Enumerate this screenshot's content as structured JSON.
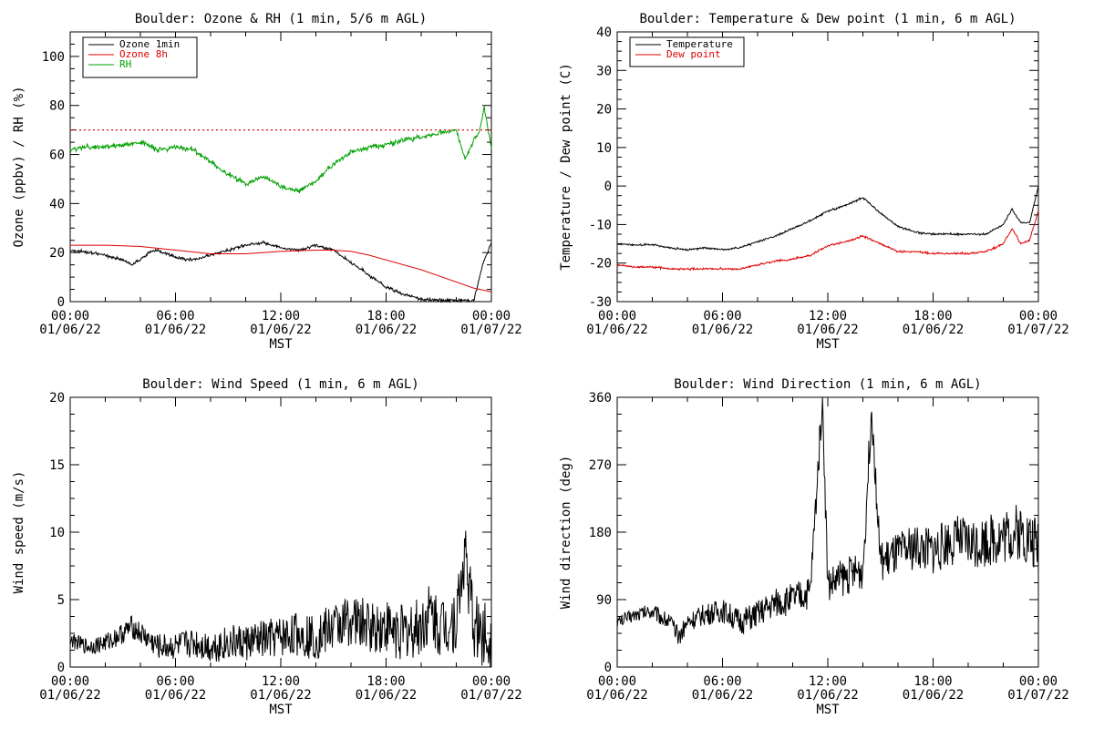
{
  "colors": {
    "black": "#000000",
    "red": "#e00000",
    "green": "#00a000"
  },
  "chart_data": [
    {
      "type": "line",
      "title": "Boulder: Ozone & RH (1 min, 5/6 m AGL)",
      "ylabel": "Ozone (ppbv) / RH (%)",
      "xlabel": "MST",
      "xtick_times": [
        "00:00",
        "06:00",
        "12:00",
        "18:00",
        "00:00"
      ],
      "xtick_dates": [
        "01/06/22",
        "01/06/22",
        "01/06/22",
        "01/06/22",
        "01/07/22"
      ],
      "xlim_hours": [
        0,
        24
      ],
      "ylim": [
        0,
        110
      ],
      "yticks": [
        0,
        20,
        40,
        60,
        80,
        100
      ],
      "reference_line": {
        "y": 70,
        "color": "#e00000",
        "style": "dotted"
      },
      "legend_position": "top-left",
      "series": [
        {
          "name": "Ozone 1min",
          "color": "#000000",
          "x": [
            0,
            1,
            2,
            3,
            3.5,
            4,
            4.5,
            5,
            6,
            7,
            8,
            9,
            10,
            11,
            12,
            13,
            14,
            15,
            16,
            17,
            18,
            19,
            20,
            21,
            22,
            23,
            23.5,
            24
          ],
          "y": [
            21,
            20,
            19,
            17,
            15,
            17,
            20,
            21,
            18,
            17,
            19,
            21,
            23,
            24,
            22,
            21,
            23,
            21,
            16,
            11,
            6,
            3,
            1,
            0.5,
            0.5,
            0.5,
            15,
            24
          ]
        },
        {
          "name": "Ozone 8h",
          "color": "#e00000",
          "x": [
            0,
            2,
            4,
            6,
            8,
            10,
            12,
            14,
            15,
            16,
            17,
            18,
            19,
            20,
            21,
            22,
            23,
            24
          ],
          "y": [
            23,
            23,
            22.5,
            21,
            19.5,
            19.5,
            20.5,
            21,
            21,
            20.5,
            19,
            17,
            15,
            13,
            10.5,
            8,
            5.5,
            4
          ]
        },
        {
          "name": "RH",
          "color": "#00a000",
          "x": [
            0,
            1,
            2,
            3,
            4,
            5,
            6,
            7,
            8,
            9,
            10,
            11,
            12,
            13,
            14,
            15,
            16,
            17,
            18,
            19,
            20,
            21,
            22,
            22.5,
            23,
            23.3,
            23.6,
            24
          ],
          "y": [
            62,
            63,
            63,
            64,
            65,
            62,
            63,
            62,
            57,
            52,
            48,
            51,
            47,
            45,
            49,
            56,
            61,
            63,
            64,
            66,
            67,
            69,
            70,
            58,
            66,
            69,
            79,
            63
          ]
        }
      ]
    },
    {
      "type": "line",
      "title": "Boulder: Temperature & Dew point (1 min, 6 m AGL)",
      "ylabel": "Temperature / Dew point (C)",
      "xlabel": "MST",
      "xtick_times": [
        "00:00",
        "06:00",
        "12:00",
        "18:00",
        "00:00"
      ],
      "xtick_dates": [
        "01/06/22",
        "01/06/22",
        "01/06/22",
        "01/06/22",
        "01/07/22"
      ],
      "xlim_hours": [
        0,
        24
      ],
      "ylim": [
        -30,
        40
      ],
      "yticks": [
        -30,
        -20,
        -10,
        0,
        10,
        20,
        30,
        40
      ],
      "legend_position": "top-left",
      "series": [
        {
          "name": "Temperature",
          "color": "#000000",
          "x": [
            0,
            1,
            2,
            3,
            4,
            5,
            6,
            7,
            8,
            9,
            10,
            11,
            12,
            13,
            14,
            15,
            16,
            17,
            18,
            19,
            20,
            21,
            22,
            22.5,
            23,
            23.5,
            24
          ],
          "y": [
            -15,
            -15.3,
            -15.2,
            -16,
            -16.5,
            -16,
            -16.5,
            -16,
            -14.5,
            -13,
            -11,
            -9,
            -6.5,
            -5,
            -3,
            -7,
            -10.5,
            -12,
            -12.5,
            -12.5,
            -12.5,
            -12.5,
            -10,
            -6,
            -9.5,
            -9.5,
            0
          ]
        },
        {
          "name": "Dew point",
          "color": "#e00000",
          "x": [
            0,
            1,
            2,
            3,
            4,
            5,
            6,
            7,
            8,
            9,
            10,
            11,
            12,
            13,
            14,
            15,
            16,
            17,
            18,
            19,
            20,
            21,
            22,
            22.5,
            23,
            23.5,
            24
          ],
          "y": [
            -20.5,
            -21,
            -21,
            -21.5,
            -21.5,
            -21.5,
            -21.5,
            -21.5,
            -20.5,
            -19.5,
            -19,
            -18,
            -15.5,
            -14.5,
            -13,
            -15,
            -17,
            -17,
            -17.5,
            -17.5,
            -17.5,
            -17,
            -15,
            -11,
            -15,
            -14,
            -6.5
          ]
        }
      ]
    },
    {
      "type": "line",
      "title": "Boulder: Wind Speed (1 min, 6 m AGL)",
      "ylabel": "Wind speed (m/s)",
      "xlabel": "MST",
      "xtick_times": [
        "00:00",
        "06:00",
        "12:00",
        "18:00",
        "00:00"
      ],
      "xtick_dates": [
        "01/06/22",
        "01/06/22",
        "01/06/22",
        "01/06/22",
        "01/07/22"
      ],
      "xlim_hours": [
        0,
        24
      ],
      "ylim": [
        0,
        20
      ],
      "yticks": [
        0,
        5,
        10,
        15,
        20
      ],
      "series": [
        {
          "color": "#000000",
          "x": [
            0,
            1,
            2,
            3,
            3.5,
            4,
            5,
            6,
            7,
            8,
            9,
            10,
            11,
            12,
            13,
            14,
            15,
            16,
            17,
            18,
            19,
            20,
            20.5,
            21,
            22,
            22.5,
            23,
            24
          ],
          "y": [
            2,
            1.5,
            1.8,
            2.5,
            3,
            2.5,
            1.5,
            1.5,
            1.8,
            1.5,
            1.8,
            1.8,
            2,
            2.2,
            2.5,
            2.2,
            3,
            3.5,
            3,
            3,
            2.5,
            3,
            4,
            3,
            3.5,
            8.5,
            3,
            2
          ]
        }
      ]
    },
    {
      "type": "line",
      "title": "Boulder: Wind Direction (1 min, 6 m AGL)",
      "ylabel": "Wind direction (deg)",
      "xlabel": "MST",
      "xtick_times": [
        "00:00",
        "06:00",
        "12:00",
        "18:00",
        "00:00"
      ],
      "xtick_dates": [
        "01/06/22",
        "01/06/22",
        "01/06/22",
        "01/06/22",
        "01/07/22"
      ],
      "xlim_hours": [
        0,
        24
      ],
      "ylim": [
        0,
        360
      ],
      "yticks": [
        0,
        90,
        180,
        270,
        360
      ],
      "series": [
        {
          "color": "#000000",
          "x": [
            0,
            1,
            2,
            3,
            3.5,
            4,
            5,
            6,
            7,
            8,
            9,
            10,
            11,
            11.7,
            12,
            13,
            14,
            14.5,
            15,
            16,
            17,
            18,
            19,
            20,
            21,
            22,
            23,
            24
          ],
          "y": [
            60,
            70,
            75,
            60,
            40,
            60,
            70,
            75,
            60,
            70,
            85,
            90,
            100,
            360,
            110,
            120,
            130,
            350,
            140,
            150,
            160,
            155,
            170,
            165,
            170,
            175,
            180,
            160
          ]
        }
      ]
    }
  ]
}
